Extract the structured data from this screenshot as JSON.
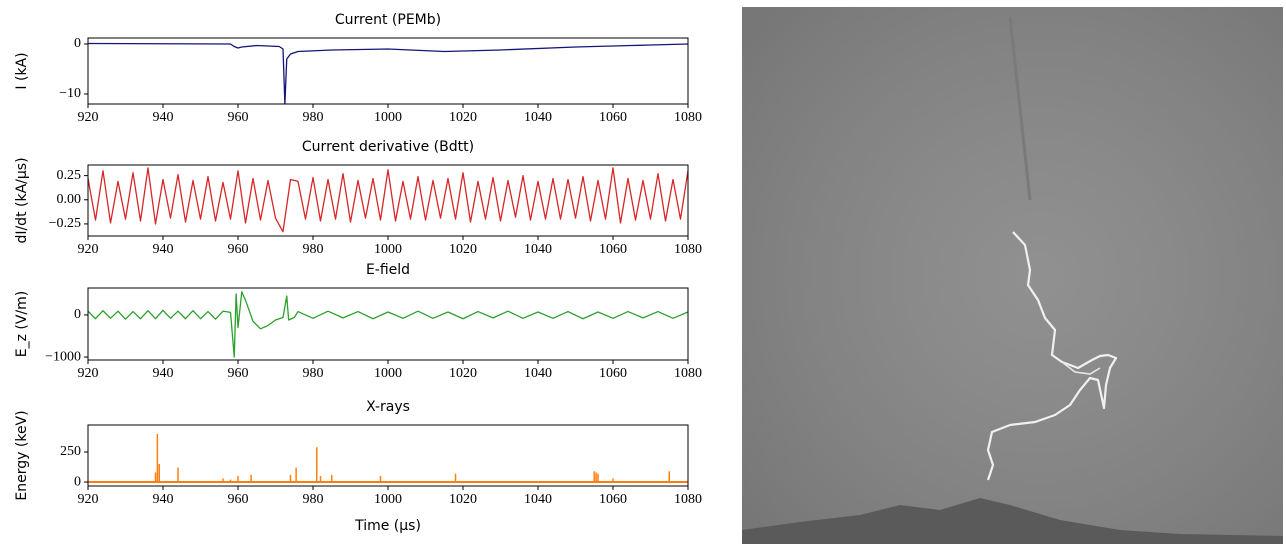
{
  "chart_data": [
    {
      "type": "line",
      "title": "Current (PEMb)",
      "ylabel": "I (kA)",
      "color": "#14147a",
      "xlim": [
        920,
        1080
      ],
      "xticks": [
        920,
        940,
        960,
        980,
        1000,
        1020,
        1040,
        1060,
        1080
      ],
      "ylim": [
        -12,
        1.2
      ],
      "yticks": [
        {
          "value": -10,
          "label": "−10"
        },
        0
      ],
      "x": [
        920,
        958,
        959,
        960,
        961,
        965,
        971,
        972,
        972.5,
        973,
        974,
        976,
        985,
        1000,
        1015,
        1030,
        1050,
        1070,
        1080
      ],
      "values": [
        0.1,
        0,
        -0.5,
        -0.8,
        -0.6,
        -0.3,
        -0.5,
        -1,
        -12,
        -3,
        -2,
        -1.5,
        -1.2,
        -1,
        -1.5,
        -1.2,
        -0.6,
        -0.2,
        0
      ]
    },
    {
      "type": "line",
      "title": "Current derivative (Bdtt)",
      "ylabel": "dI/dt (kA/μs)",
      "color": "#d62728",
      "xlim": [
        920,
        1080
      ],
      "xticks": [
        920,
        940,
        960,
        980,
        1000,
        1020,
        1040,
        1060,
        1080
      ],
      "ylim": [
        -0.375,
        0.36
      ],
      "yticks": [
        {
          "value": -0.25,
          "label": "−0.25"
        },
        {
          "value": 0,
          "label": "0.00"
        },
        0.25
      ],
      "x": [
        920,
        922,
        924,
        926,
        928,
        930,
        932,
        934,
        936,
        938,
        940,
        942,
        944,
        946,
        948,
        950,
        952,
        954,
        956,
        958,
        960,
        962,
        964,
        966,
        968,
        970,
        972,
        974,
        976,
        978,
        980,
        982,
        984,
        986,
        988,
        990,
        992,
        994,
        996,
        998,
        1000,
        1002,
        1004,
        1006,
        1008,
        1010,
        1012,
        1014,
        1016,
        1018,
        1020,
        1022,
        1024,
        1026,
        1028,
        1030,
        1032,
        1034,
        1036,
        1038,
        1040,
        1042,
        1044,
        1046,
        1048,
        1050,
        1052,
        1054,
        1056,
        1058,
        1060,
        1062,
        1064,
        1066,
        1068,
        1070,
        1072,
        1074,
        1076,
        1078,
        1080
      ],
      "values": [
        0.22,
        -0.21,
        0.3,
        -0.24,
        0.19,
        -0.2,
        0.28,
        -0.22,
        0.33,
        -0.25,
        0.21,
        -0.19,
        0.26,
        -0.23,
        0.2,
        -0.2,
        0.24,
        -0.22,
        0.18,
        -0.2,
        0.3,
        -0.24,
        0.22,
        -0.21,
        0.2,
        -0.19,
        -0.33,
        0.21,
        0.19,
        -0.2,
        0.23,
        -0.22,
        0.21,
        -0.2,
        0.27,
        -0.23,
        0.2,
        -0.19,
        0.22,
        -0.21,
        0.31,
        -0.22,
        0.19,
        -0.2,
        0.24,
        -0.21,
        0.2,
        -0.19,
        0.22,
        -0.2,
        0.28,
        -0.23,
        0.19,
        -0.2,
        0.23,
        -0.22,
        0.2,
        -0.18,
        0.25,
        -0.21,
        0.19,
        -0.2,
        0.22,
        -0.2,
        0.21,
        -0.19,
        0.24,
        -0.22,
        0.2,
        -0.2,
        0.33,
        -0.24,
        0.22,
        -0.21,
        0.2,
        -0.2,
        0.27,
        -0.22,
        0.21,
        -0.2,
        0.3
      ]
    },
    {
      "type": "line",
      "title": "E-field",
      "ylabel": "E_z (V/m)",
      "color": "#2ca02c",
      "xlim": [
        920,
        1080
      ],
      "xticks": [
        920,
        940,
        960,
        980,
        1000,
        1020,
        1040,
        1060,
        1080
      ],
      "ylim": [
        -1070,
        640
      ],
      "yticks": [
        {
          "value": -1000,
          "label": "−1000"
        },
        0
      ],
      "x": [
        920,
        922,
        924,
        926,
        928,
        930,
        932,
        934,
        936,
        938,
        940,
        942,
        944,
        946,
        948,
        950,
        952,
        954,
        956,
        958,
        959,
        959.5,
        960,
        961,
        962,
        964,
        966,
        968,
        970,
        972,
        973,
        973.5,
        975,
        976,
        980,
        984,
        988,
        992,
        996,
        1000,
        1004,
        1008,
        1012,
        1016,
        1020,
        1024,
        1028,
        1032,
        1036,
        1040,
        1044,
        1048,
        1052,
        1056,
        1060,
        1064,
        1068,
        1072,
        1076,
        1080
      ],
      "values": [
        90,
        -90,
        100,
        -80,
        90,
        -100,
        80,
        -90,
        100,
        -90,
        110,
        -80,
        90,
        -90,
        100,
        -90,
        80,
        -100,
        90,
        60,
        -1000,
        500,
        -300,
        550,
        350,
        -150,
        -330,
        -250,
        -120,
        -60,
        450,
        -120,
        -60,
        80,
        -80,
        90,
        -70,
        80,
        -90,
        70,
        -80,
        90,
        -80,
        70,
        -90,
        80,
        -70,
        90,
        -80,
        70,
        -80,
        80,
        -90,
        70,
        -80,
        80,
        -70,
        80,
        -80,
        70
      ]
    },
    {
      "type": "stem",
      "title": "X-rays",
      "ylabel": "Energy (keV)",
      "xlabel": "Time (μs)",
      "color": "#ff7f0e",
      "xlim": [
        920,
        1080
      ],
      "xticks": [
        920,
        940,
        960,
        980,
        1000,
        1020,
        1040,
        1060,
        1080
      ],
      "ylim": [
        -33,
        475
      ],
      "yticks": [
        0,
        250
      ],
      "x": [
        938,
        938.5,
        939,
        944,
        956,
        958,
        960,
        963.5,
        974,
        975.5,
        981,
        982,
        985,
        998,
        1018,
        1055,
        1055.5,
        1056,
        1060,
        1075
      ],
      "values": [
        80,
        400,
        150,
        120,
        30,
        20,
        50,
        60,
        60,
        120,
        290,
        50,
        60,
        50,
        70,
        90,
        80,
        70,
        30,
        90
      ]
    }
  ]
}
